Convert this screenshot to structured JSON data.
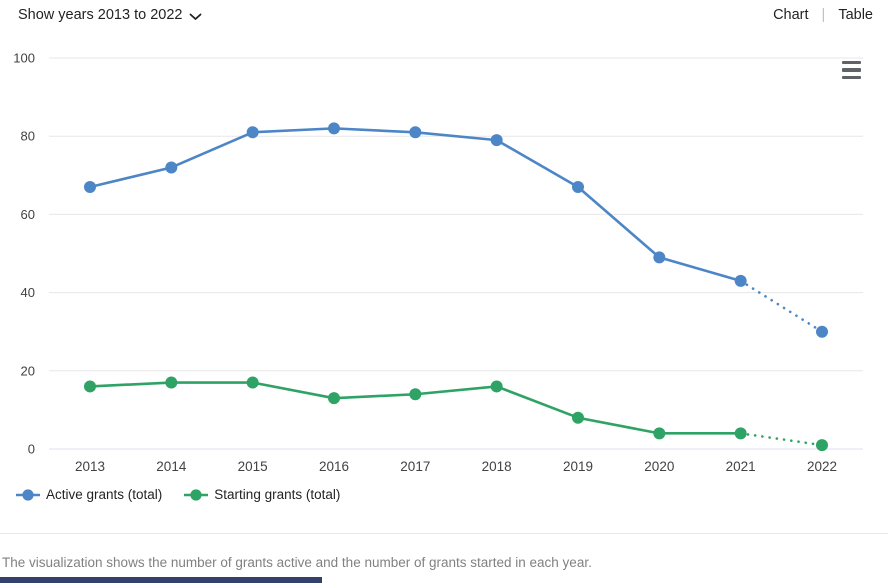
{
  "header": {
    "year_filter": {
      "label": "Show years 2013 to 2022"
    },
    "view_toggle": {
      "chart": "Chart",
      "separator": "|",
      "table": "Table"
    }
  },
  "icons": {
    "chevron_down": "chevron-down-icon",
    "menu": "hamburger-icon"
  },
  "chart_data": {
    "type": "line",
    "title": "",
    "categories": [
      "2013",
      "2014",
      "2015",
      "2016",
      "2017",
      "2018",
      "2019",
      "2020",
      "2021",
      "2022"
    ],
    "series": [
      {
        "name": "Active grants (total)",
        "color": "#4d86c6",
        "values": [
          67,
          72,
          81,
          82,
          81,
          79,
          67,
          49,
          43,
          30
        ],
        "last_segment_style": "dotted"
      },
      {
        "name": "Starting grants (total)",
        "color": "#2fa365",
        "values": [
          16,
          17,
          17,
          13,
          14,
          16,
          8,
          4,
          4,
          1
        ],
        "last_segment_style": "dotted"
      }
    ],
    "xlabel": "",
    "ylabel": "",
    "ylim": [
      0,
      100
    ],
    "yticks": [
      0,
      20,
      40,
      60,
      80,
      100
    ],
    "grid": true,
    "legend_position": "bottom",
    "colors": {
      "gridline": "#e7e7e7",
      "zero_line": "#dcdff1",
      "tick_label": "#424242"
    }
  },
  "caption": "The visualization shows the number of grants active and the number of grants started in each year."
}
